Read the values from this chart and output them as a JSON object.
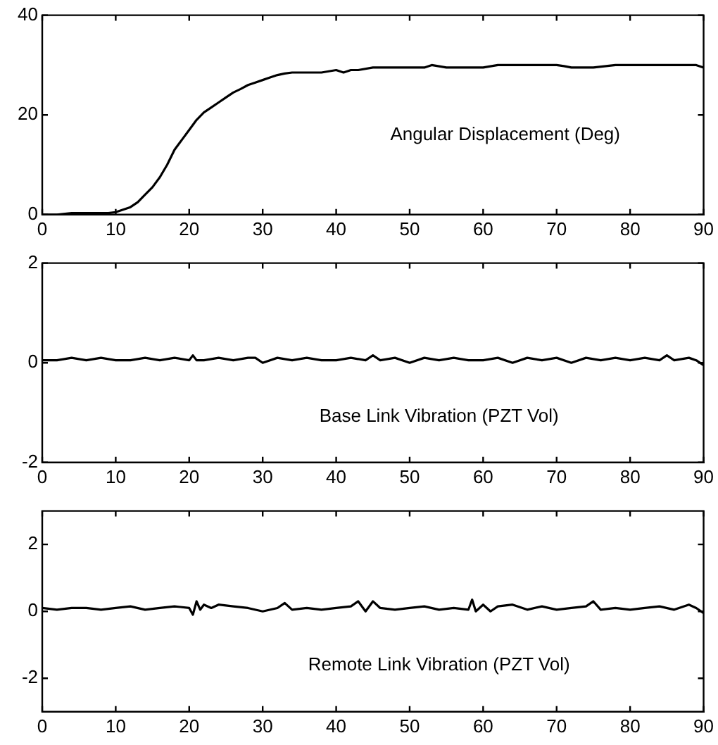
{
  "chart_data": [
    {
      "type": "line",
      "annotations": [
        "Angular Displacement (Deg)"
      ],
      "x": [
        0,
        2,
        4,
        6,
        8,
        9,
        10,
        11,
        12,
        13,
        14,
        15,
        16,
        17,
        18,
        19,
        20,
        21,
        22,
        23,
        24,
        25,
        26,
        27,
        28,
        29,
        30,
        31,
        32,
        33,
        34,
        36,
        38,
        40,
        41,
        42,
        43,
        45,
        50,
        52,
        53,
        55,
        60,
        62,
        63,
        65,
        70,
        71,
        72,
        75,
        78,
        80,
        85,
        88,
        89,
        90
      ],
      "series": [
        {
          "color": "#000000",
          "values": [
            0,
            0,
            0.3,
            0.3,
            0.3,
            0.3,
            0.5,
            1,
            1.5,
            2.5,
            4,
            5.5,
            7.5,
            10,
            13,
            15,
            17,
            19,
            20.5,
            21.5,
            22.5,
            23.5,
            24.5,
            25.2,
            26,
            26.5,
            27,
            27.5,
            28,
            28.3,
            28.5,
            28.5,
            28.5,
            29,
            28.5,
            29,
            29,
            29.5,
            29.5,
            29.5,
            30,
            29.5,
            29.5,
            30,
            30,
            30,
            30,
            29.8,
            29.5,
            29.5,
            30,
            30,
            30,
            30,
            30,
            29.5
          ]
        }
      ],
      "xlim": [
        0,
        90
      ],
      "xticks": [
        0,
        10,
        20,
        30,
        40,
        50,
        60,
        70,
        80,
        90
      ],
      "ylim": [
        0,
        40
      ],
      "yticks": [
        0,
        20,
        40
      ],
      "grid": false,
      "legend": false,
      "marker": "none",
      "line_style": "solid"
    },
    {
      "type": "line",
      "annotations": [
        "Base Link Vibration (PZT Vol)"
      ],
      "x": [
        0,
        2,
        4,
        6,
        8,
        10,
        12,
        14,
        16,
        18,
        20,
        20.5,
        21,
        22,
        24,
        26,
        28,
        29,
        30,
        32,
        34,
        36,
        38,
        40,
        42,
        44,
        45,
        46,
        48,
        50,
        52,
        54,
        56,
        58,
        60,
        62,
        64,
        66,
        68,
        70,
        72,
        74,
        76,
        78,
        80,
        82,
        84,
        85,
        86,
        88,
        89,
        90
      ],
      "series": [
        {
          "color": "#000000",
          "values": [
            0.05,
            0.05,
            0.1,
            0.05,
            0.1,
            0.05,
            0.05,
            0.1,
            0.05,
            0.1,
            0.05,
            0.15,
            0.05,
            0.05,
            0.1,
            0.05,
            0.1,
            0.1,
            0,
            0.1,
            0.05,
            0.1,
            0.05,
            0.05,
            0.1,
            0.05,
            0.15,
            0.05,
            0.1,
            0,
            0.1,
            0.05,
            0.1,
            0.05,
            0.05,
            0.1,
            0,
            0.1,
            0.05,
            0.1,
            0,
            0.1,
            0.05,
            0.1,
            0.05,
            0.1,
            0.05,
            0.15,
            0.05,
            0.1,
            0.05,
            -0.05
          ]
        }
      ],
      "xlim": [
        0,
        90
      ],
      "xticks": [
        0,
        10,
        20,
        30,
        40,
        50,
        60,
        70,
        80,
        90
      ],
      "ylim": [
        -2,
        2
      ],
      "yticks": [
        -2,
        0,
        2
      ],
      "grid": false,
      "legend": false,
      "marker": "none",
      "line_style": "solid"
    },
    {
      "type": "line",
      "annotations": [
        "Remote Link Vibration (PZT Vol)"
      ],
      "x": [
        0,
        2,
        4,
        6,
        8,
        10,
        12,
        14,
        16,
        18,
        20,
        20.5,
        21,
        21.5,
        22,
        23,
        24,
        26,
        28,
        30,
        32,
        33,
        34,
        36,
        38,
        40,
        42,
        43,
        44,
        45,
        46,
        48,
        50,
        52,
        54,
        56,
        58,
        58.5,
        59,
        60,
        61,
        62,
        64,
        66,
        68,
        70,
        72,
        74,
        75,
        76,
        78,
        80,
        82,
        84,
        86,
        88,
        89,
        90
      ],
      "series": [
        {
          "color": "#000000",
          "values": [
            0.1,
            0.05,
            0.1,
            0.1,
            0.05,
            0.1,
            0.15,
            0.05,
            0.1,
            0.15,
            0.1,
            -0.1,
            0.3,
            0.05,
            0.2,
            0.1,
            0.2,
            0.15,
            0.1,
            0,
            0.1,
            0.25,
            0.05,
            0.1,
            0.05,
            0.1,
            0.15,
            0.3,
            0,
            0.3,
            0.1,
            0.05,
            0.1,
            0.15,
            0.05,
            0.1,
            0.05,
            0.35,
            0,
            0.2,
            0,
            0.15,
            0.2,
            0.05,
            0.15,
            0.05,
            0.1,
            0.15,
            0.3,
            0.05,
            0.1,
            0.05,
            0.1,
            0.15,
            0.05,
            0.2,
            0.1,
            -0.05
          ]
        }
      ],
      "xlim": [
        0,
        90
      ],
      "xticks": [
        0,
        10,
        20,
        30,
        40,
        50,
        60,
        70,
        80,
        90
      ],
      "ylim": [
        -3,
        3
      ],
      "yticks": [
        -2,
        0,
        2
      ],
      "grid": false,
      "legend": false,
      "marker": "none",
      "line_style": "solid"
    }
  ]
}
